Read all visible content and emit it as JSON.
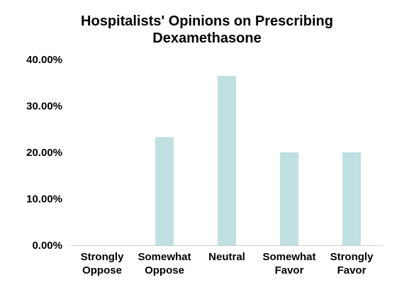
{
  "chart_data": {
    "type": "bar",
    "title_lines": [
      "Hospitalists' Opinions on Prescribing",
      "Dexamethasone"
    ],
    "categories": [
      [
        "Strongly",
        "Oppose"
      ],
      [
        "Somewhat",
        "Oppose"
      ],
      [
        "Neutral"
      ],
      [
        "Somewhat",
        "Favor"
      ],
      [
        "Strongly",
        "Favor"
      ]
    ],
    "values": [
      0,
      23.3,
      36.5,
      20.0,
      20.0
    ],
    "ylim": [
      0,
      40
    ],
    "yticks": [
      0,
      10,
      20,
      30,
      40
    ],
    "ytick_labels": [
      "0.00%",
      "10.00%",
      "20.00%",
      "30.00%",
      "40.00%"
    ],
    "xlabel": "",
    "ylabel": "",
    "grid": false,
    "bar_color": "#c0e0e2"
  }
}
